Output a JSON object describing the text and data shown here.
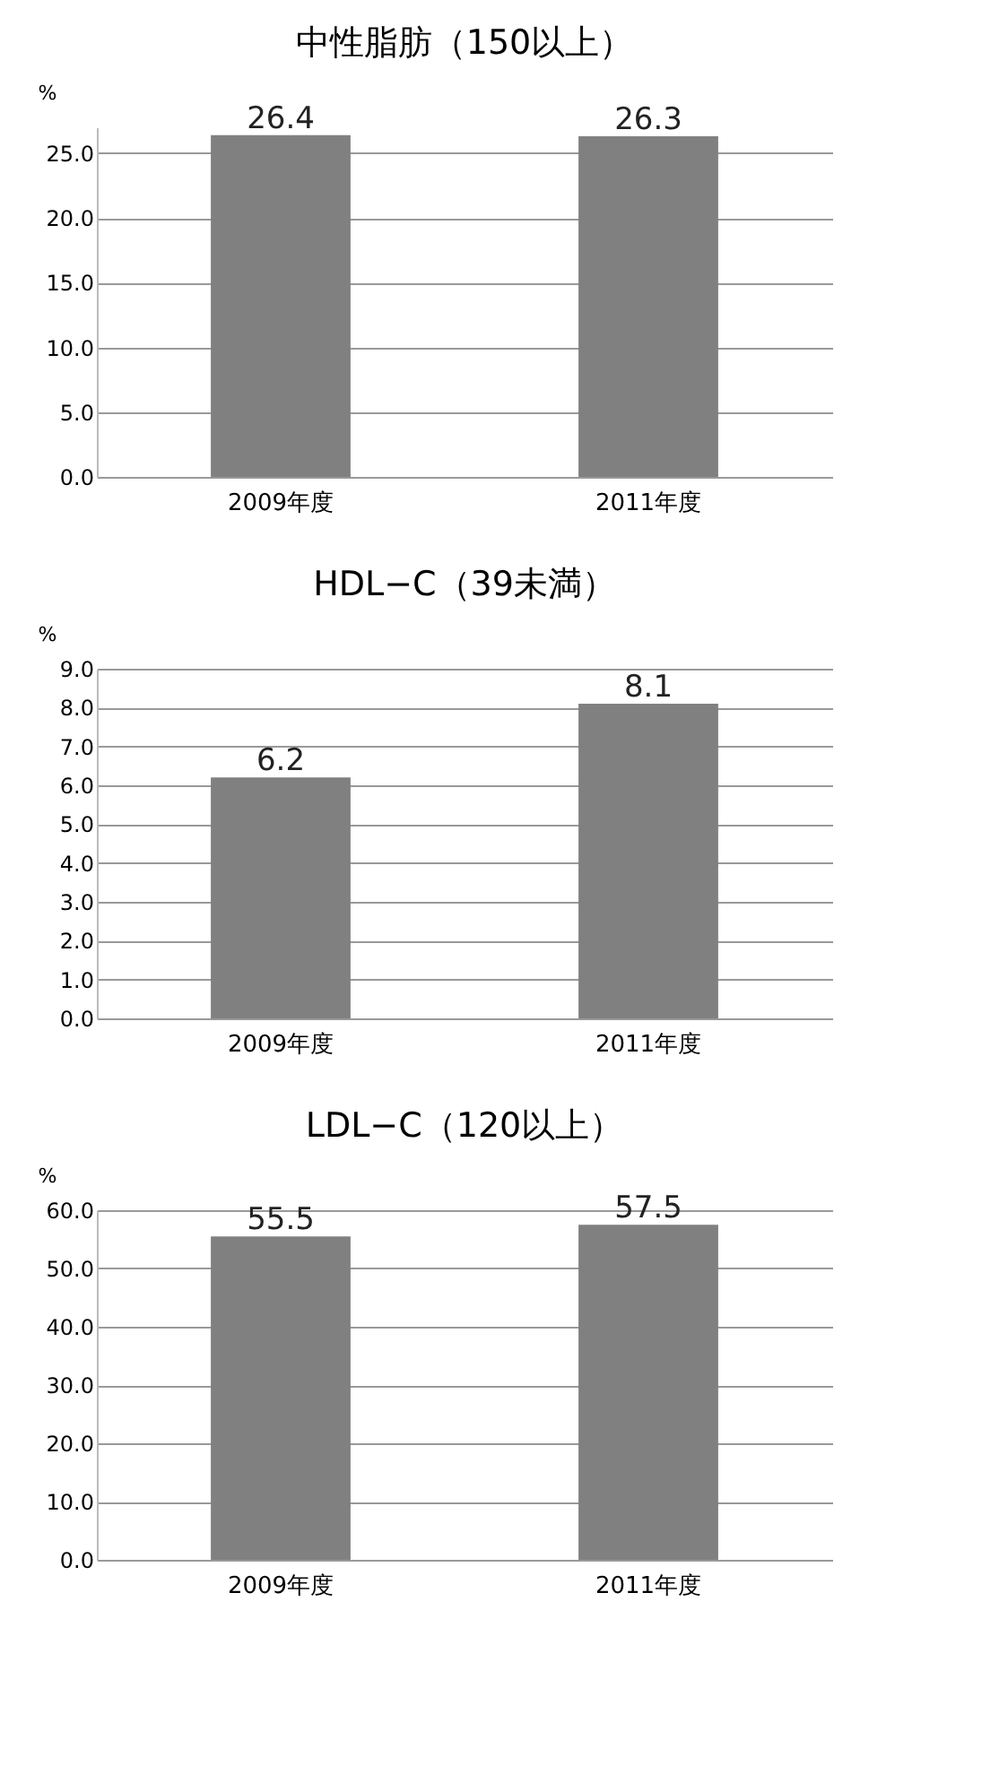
{
  "chart_data": [
    {
      "type": "bar",
      "title": "中性脂肪（150以上）",
      "ylabel": "%",
      "categories": [
        "2009年度",
        "2011年度"
      ],
      "values": [
        26.4,
        26.3
      ],
      "color": "#808080",
      "ylim": [
        0,
        27
      ],
      "yticks": [
        {
          "value": 0,
          "label": "0.0"
        },
        {
          "value": 5,
          "label": "5.0"
        },
        {
          "value": 10,
          "label": "10.0"
        },
        {
          "value": 15,
          "label": "15.0"
        },
        {
          "value": 20,
          "label": "20.0"
        },
        {
          "value": 25,
          "label": "25.0"
        }
      ],
      "grid": "y",
      "data_labels": true
    },
    {
      "type": "bar",
      "title": "HDL−C（39未満）",
      "ylabel": "%",
      "categories": [
        "2009年度",
        "2011年度"
      ],
      "values": [
        6.2,
        8.1
      ],
      "color": "#808080",
      "ylim": [
        0,
        9
      ],
      "yticks": [
        {
          "value": 0,
          "label": "0.0"
        },
        {
          "value": 1,
          "label": "1.0"
        },
        {
          "value": 2,
          "label": "2.0"
        },
        {
          "value": 3,
          "label": "3.0"
        },
        {
          "value": 4,
          "label": "4.0"
        },
        {
          "value": 5,
          "label": "5.0"
        },
        {
          "value": 6,
          "label": "6.0"
        },
        {
          "value": 7,
          "label": "7.0"
        },
        {
          "value": 8,
          "label": "8.0"
        },
        {
          "value": 9,
          "label": "9.0"
        }
      ],
      "grid": "y",
      "data_labels": true
    },
    {
      "type": "bar",
      "title": "LDL−C（120以上）",
      "ylabel": "%",
      "categories": [
        "2009年度",
        "2011年度"
      ],
      "values": [
        55.5,
        57.5
      ],
      "color": "#808080",
      "ylim": [
        0,
        60
      ],
      "yticks": [
        {
          "value": 0,
          "label": "0.0"
        },
        {
          "value": 10,
          "label": "10.0"
        },
        {
          "value": 20,
          "label": "20.0"
        },
        {
          "value": 30,
          "label": "30.0"
        },
        {
          "value": 40,
          "label": "40.0"
        },
        {
          "value": 50,
          "label": "50.0"
        },
        {
          "value": 60,
          "label": "60.0"
        }
      ],
      "grid": "y",
      "data_labels": true
    }
  ]
}
